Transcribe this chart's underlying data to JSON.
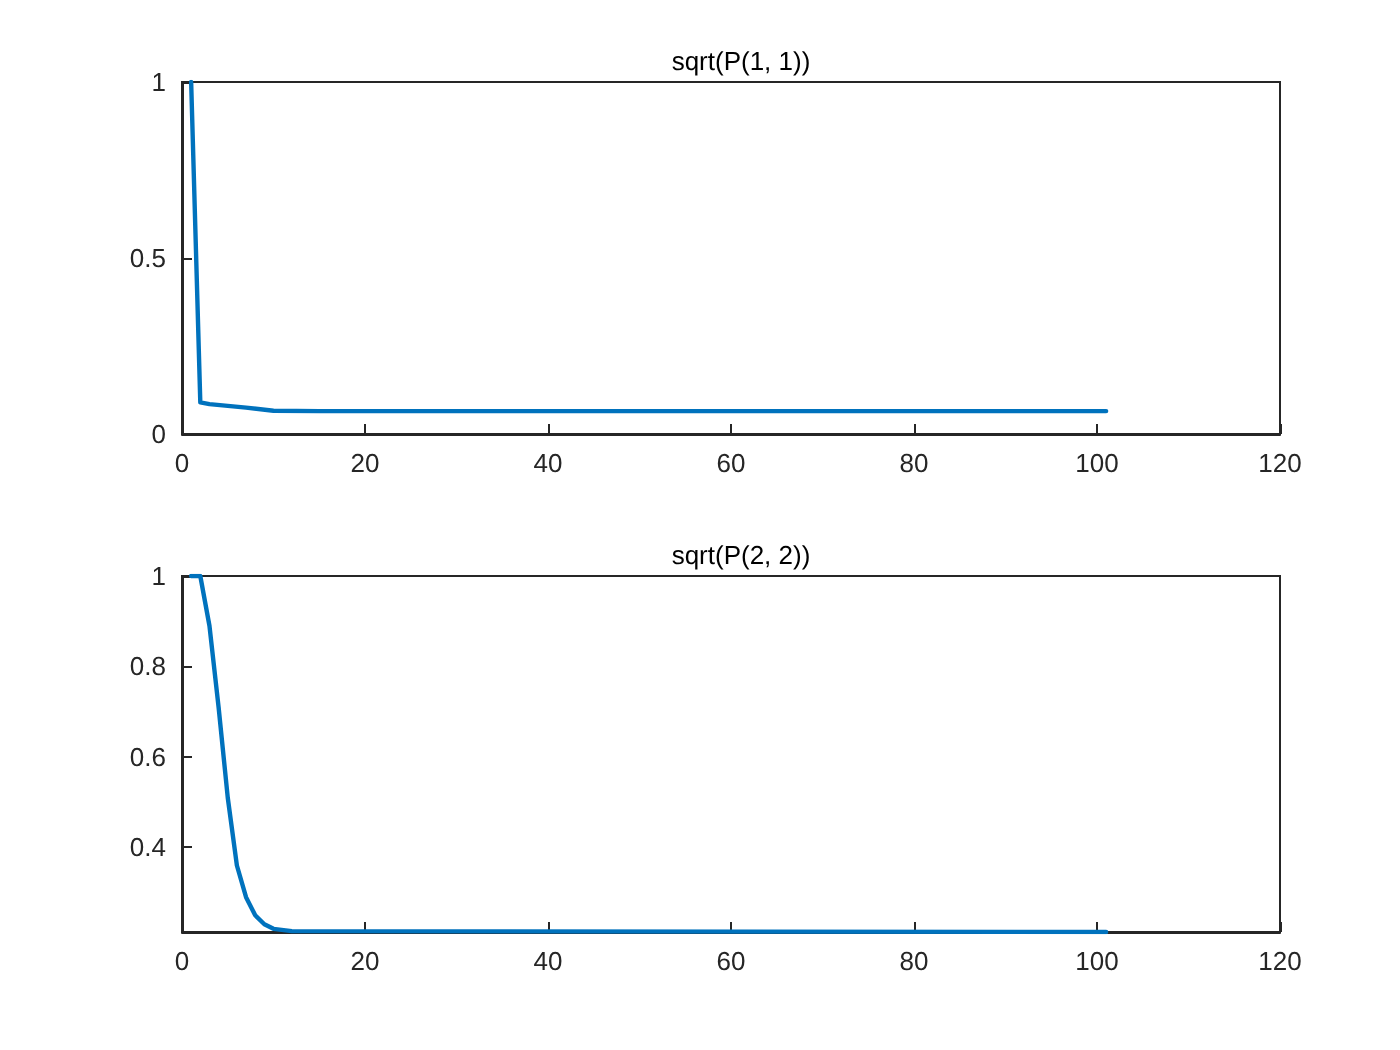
{
  "chart_data": [
    {
      "type": "line",
      "title": "sqrt(P(1, 1))",
      "x": [
        1,
        2,
        3,
        5,
        7,
        10,
        15,
        101
      ],
      "series": [
        {
          "color": "#0072bd",
          "values": [
            1,
            0.09,
            0.085,
            0.08,
            0.075,
            0.066,
            0.065,
            0.065
          ]
        }
      ],
      "xlim": [
        0,
        120
      ],
      "xticks": [
        0,
        20,
        40,
        60,
        80,
        100,
        120
      ],
      "ylim": [
        0,
        1
      ],
      "yticks": [
        0,
        0.5,
        1
      ],
      "grid": false
    },
    {
      "type": "line",
      "title": "sqrt(P(2, 2))",
      "x": [
        1,
        2,
        3,
        4,
        5,
        6,
        7,
        8,
        9,
        10,
        12,
        101
      ],
      "series": [
        {
          "color": "#0072bd",
          "values": [
            1,
            1,
            0.89,
            0.71,
            0.51,
            0.36,
            0.29,
            0.25,
            0.23,
            0.22,
            0.215,
            0.213
          ]
        }
      ],
      "xlim": [
        0,
        120
      ],
      "xticks": [
        0,
        20,
        40,
        60,
        80,
        100,
        120
      ],
      "ylim": [
        0.213,
        1
      ],
      "yticks": [
        0.4,
        0.6,
        0.8,
        1
      ],
      "grid": false
    }
  ]
}
